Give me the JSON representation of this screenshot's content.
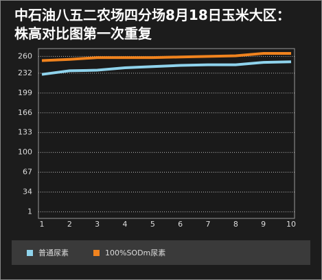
{
  "chart_data": {
    "type": "line",
    "title": "中石油八五二农场四分场8月18日玉米大区：株高对比图第一次重复",
    "categories": [
      "1",
      "2",
      "3",
      "4",
      "5",
      "6",
      "7",
      "8",
      "9",
      "10"
    ],
    "series": [
      {
        "name": "普通尿素",
        "color": "#8fd3ec",
        "values": [
          230,
          236,
          237,
          241,
          243,
          245,
          246,
          246,
          250,
          251
        ]
      },
      {
        "name": "100%SODm尿素",
        "color": "#f0831e",
        "values": [
          253,
          255,
          258,
          258,
          258,
          259,
          260,
          261,
          265,
          265
        ]
      }
    ],
    "ylim": [
      -10,
      273
    ],
    "yticks": [
      1,
      34,
      67,
      100,
      133,
      166,
      199,
      232,
      260
    ],
    "grid": true
  }
}
